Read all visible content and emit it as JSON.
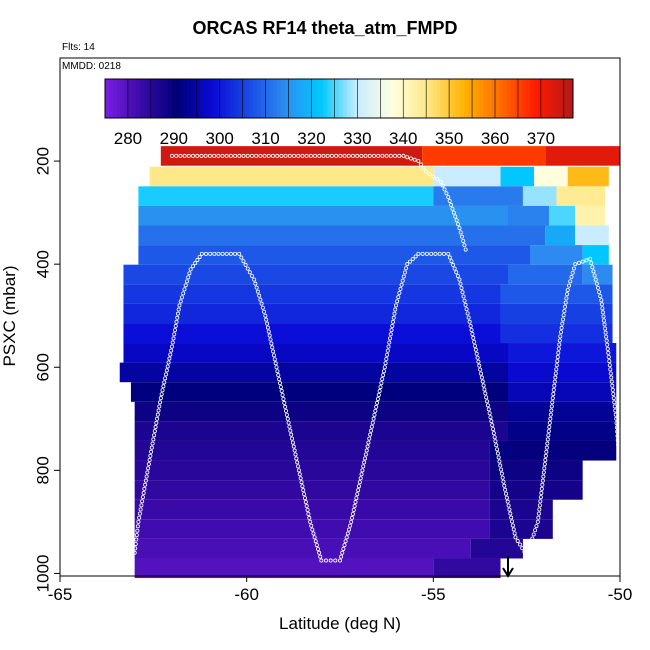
{
  "chart_data": {
    "type": "heatmap",
    "title": "ORCAS RF14 theta_atm_FMPD",
    "flights_label": "Flts: 14",
    "date_label": "MMDD: 0218",
    "xlabel": "Latitude (deg N)",
    "ylabel": "PSXC (mbar)",
    "xlim": [
      -65,
      -50
    ],
    "ylim": [
      1005,
      0
    ],
    "x_ticks": [
      -65,
      -60,
      -55,
      -50
    ],
    "y_ticks": [
      200,
      400,
      600,
      800,
      1000
    ],
    "colorbar": {
      "min": 275,
      "max": 377,
      "ticks": [
        280,
        290,
        300,
        310,
        320,
        330,
        340,
        350,
        360,
        370
      ],
      "colors": [
        "#7b1fe6",
        "#3a0aa8",
        "#00007a",
        "#0a0ad6",
        "#1a4be6",
        "#2d8cf0",
        "#00c8ff",
        "#c8ecff",
        "#ffffe0",
        "#ffe680",
        "#ffb000",
        "#ff6a00",
        "#ff1a00",
        "#b01a1a"
      ]
    },
    "rows": [
      {
        "p": 190,
        "segments": [
          [
            -62.3,
            -55.3,
            374
          ],
          [
            -55.3,
            -52.0,
            366
          ],
          [
            -52.0,
            -50.0,
            372
          ]
        ]
      },
      {
        "p": 230,
        "segments": [
          [
            -62.6,
            -55.0,
            345
          ],
          [
            -55.0,
            -53.2,
            330
          ],
          [
            -53.2,
            -52.3,
            322
          ],
          [
            -52.3,
            -51.4,
            338
          ],
          [
            -51.4,
            -50.3,
            352
          ]
        ]
      },
      {
        "p": 268,
        "segments": [
          [
            -62.9,
            -55.0,
            323
          ],
          [
            -55.0,
            -52.6,
            312
          ],
          [
            -52.6,
            -51.7,
            328
          ],
          [
            -51.7,
            -50.4,
            344
          ]
        ]
      },
      {
        "p": 306,
        "segments": [
          [
            -62.9,
            -53.0,
            315
          ],
          [
            -53.0,
            -51.9,
            313
          ],
          [
            -51.9,
            -51.2,
            325
          ],
          [
            -51.2,
            -50.4,
            342
          ]
        ]
      },
      {
        "p": 344,
        "segments": [
          [
            -62.9,
            -52.0,
            311
          ],
          [
            -52.0,
            -51.2,
            318
          ],
          [
            -51.2,
            -50.3,
            330
          ]
        ]
      },
      {
        "p": 382,
        "segments": [
          [
            -62.9,
            -52.4,
            308
          ],
          [
            -52.4,
            -51.0,
            314
          ],
          [
            -51.0,
            -50.3,
            322
          ]
        ]
      },
      {
        "p": 420,
        "segments": [
          [
            -63.3,
            -53.0,
            306
          ],
          [
            -53.0,
            -51.0,
            310
          ],
          [
            -51.0,
            -50.2,
            314
          ]
        ]
      },
      {
        "p": 458,
        "segments": [
          [
            -63.3,
            -53.2,
            304
          ],
          [
            -53.2,
            -50.2,
            308
          ]
        ]
      },
      {
        "p": 496,
        "segments": [
          [
            -63.3,
            -53.2,
            302
          ],
          [
            -53.2,
            -50.2,
            305
          ]
        ]
      },
      {
        "p": 534,
        "segments": [
          [
            -63.3,
            -53.2,
            299
          ],
          [
            -53.2,
            -50.2,
            303
          ]
        ]
      },
      {
        "p": 572,
        "segments": [
          [
            -63.3,
            -53.0,
            297
          ],
          [
            -53.0,
            -50.1,
            300
          ]
        ]
      },
      {
        "p": 610,
        "segments": [
          [
            -63.4,
            -53.0,
            294
          ],
          [
            -53.0,
            -50.1,
            298
          ]
        ]
      },
      {
        "p": 648,
        "segments": [
          [
            -63.1,
            -53.0,
            291
          ],
          [
            -53.0,
            -50.1,
            296
          ]
        ]
      },
      {
        "p": 686,
        "segments": [
          [
            -63.0,
            -53.0,
            289
          ],
          [
            -53.0,
            -50.1,
            293
          ]
        ]
      },
      {
        "p": 724,
        "segments": [
          [
            -63.0,
            -53.0,
            287
          ],
          [
            -53.0,
            -50.1,
            292
          ]
        ]
      },
      {
        "p": 762,
        "segments": [
          [
            -63.0,
            -53.5,
            286
          ],
          [
            -53.5,
            -50.1,
            290
          ]
        ]
      },
      {
        "p": 800,
        "segments": [
          [
            -63.0,
            -53.5,
            285
          ],
          [
            -53.5,
            -51.0,
            289
          ]
        ]
      },
      {
        "p": 838,
        "segments": [
          [
            -63.0,
            -53.5,
            284
          ],
          [
            -53.5,
            -51.0,
            288
          ]
        ]
      },
      {
        "p": 876,
        "segments": [
          [
            -63.0,
            -53.5,
            283
          ],
          [
            -53.5,
            -51.8,
            287
          ]
        ]
      },
      {
        "p": 914,
        "segments": [
          [
            -63.0,
            -53.5,
            282
          ],
          [
            -53.5,
            -51.8,
            287
          ]
        ]
      },
      {
        "p": 952,
        "segments": [
          [
            -63.0,
            -54.0,
            281
          ],
          [
            -54.0,
            -52.6,
            286
          ]
        ]
      },
      {
        "p": 990,
        "segments": [
          [
            -63.0,
            -55.0,
            280
          ],
          [
            -55.0,
            -53.2,
            284
          ]
        ]
      }
    ],
    "flight_track": [
      [
        -63.0,
        960
      ],
      [
        -62.9,
        900
      ],
      [
        -62.7,
        820
      ],
      [
        -62.5,
        740
      ],
      [
        -62.3,
        660
      ],
      [
        -62.0,
        560
      ],
      [
        -61.8,
        480
      ],
      [
        -61.5,
        410
      ],
      [
        -61.2,
        380
      ],
      [
        -60.2,
        380
      ],
      [
        -59.8,
        430
      ],
      [
        -59.5,
        500
      ],
      [
        -59.2,
        600
      ],
      [
        -58.9,
        700
      ],
      [
        -58.6,
        800
      ],
      [
        -58.3,
        900
      ],
      [
        -58.0,
        975
      ],
      [
        -57.5,
        975
      ],
      [
        -57.2,
        900
      ],
      [
        -56.9,
        800
      ],
      [
        -56.6,
        700
      ],
      [
        -56.3,
        600
      ],
      [
        -56.0,
        480
      ],
      [
        -55.7,
        400
      ],
      [
        -55.4,
        380
      ],
      [
        -54.6,
        380
      ],
      [
        -54.3,
        430
      ],
      [
        -54.0,
        520
      ],
      [
        -53.7,
        620
      ],
      [
        -53.4,
        720
      ],
      [
        -53.1,
        830
      ],
      [
        -52.8,
        930
      ],
      [
        -52.5,
        965
      ],
      [
        -52.2,
        900
      ],
      [
        -52.0,
        780
      ],
      [
        -51.8,
        660
      ],
      [
        -51.6,
        540
      ],
      [
        -51.4,
        450
      ],
      [
        -51.2,
        400
      ],
      [
        -50.8,
        390
      ],
      [
        -50.5,
        470
      ],
      [
        -50.3,
        580
      ],
      [
        -50.1,
        700
      ],
      [
        -50.0,
        800
      ]
    ],
    "upper_track": [
      [
        -62.0,
        190
      ],
      [
        -55.8,
        190
      ],
      [
        -55.4,
        200
      ],
      [
        -55.2,
        220
      ],
      [
        -54.8,
        240
      ],
      [
        -54.6,
        270
      ],
      [
        -54.3,
        330
      ],
      [
        -54.1,
        380
      ]
    ],
    "arrow_marker": {
      "lat": -53.0,
      "p": 1005
    }
  }
}
